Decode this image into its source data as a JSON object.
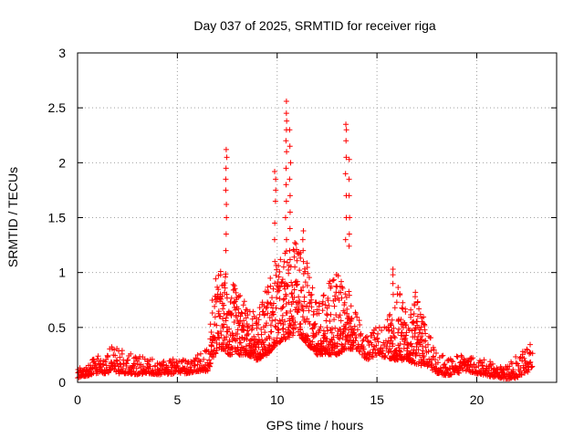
{
  "chart_data": {
    "type": "scatter",
    "title": "Day 037 of 2025, SRMTID for receiver riga",
    "xlabel": "GPS time / hours",
    "ylabel": "SRMTID / TECUs",
    "xlim": [
      0,
      24
    ],
    "ylim": [
      0,
      3
    ],
    "x_ticks": [
      0,
      5,
      10,
      15,
      20
    ],
    "x_tick_labels": [
      "0",
      "5",
      "10",
      "15",
      "20"
    ],
    "y_ticks": [
      0,
      0.5,
      1,
      1.5,
      2,
      2.5,
      3
    ],
    "y_tick_labels": [
      "0",
      "0.5",
      "1",
      "1.5",
      "2",
      "2.5",
      "3"
    ],
    "grid": true,
    "marker": "+",
    "series": [
      {
        "name": "SRMTID",
        "color": "#ff0000",
        "envelope": {
          "description": "points clustered between low and high bounds at each hour; spikes listed separately",
          "hours": [
            0,
            0.5,
            1,
            1.5,
            1.8,
            2,
            2.5,
            3,
            3.5,
            4,
            4.5,
            5,
            5.5,
            6,
            6.5,
            6.8,
            7,
            7.3,
            7.6,
            8,
            8.5,
            9,
            9.5,
            10,
            10.5,
            11,
            11.5,
            12,
            12.5,
            13,
            13.5,
            14,
            14.5,
            15,
            15.5,
            16,
            16.5,
            17,
            17.5,
            18,
            18.5,
            19,
            19.5,
            20,
            20.5,
            21,
            21.5,
            22,
            22.5,
            22.8
          ],
          "low": [
            0.04,
            0.06,
            0.08,
            0.08,
            0.12,
            0.08,
            0.08,
            0.07,
            0.08,
            0.07,
            0.07,
            0.08,
            0.08,
            0.1,
            0.1,
            0.2,
            0.3,
            0.3,
            0.25,
            0.25,
            0.25,
            0.2,
            0.25,
            0.35,
            0.4,
            0.45,
            0.35,
            0.25,
            0.25,
            0.25,
            0.3,
            0.3,
            0.2,
            0.25,
            0.22,
            0.2,
            0.2,
            0.15,
            0.15,
            0.08,
            0.06,
            0.08,
            0.1,
            0.08,
            0.06,
            0.04,
            0.03,
            0.04,
            0.08,
            0.15
          ],
          "high": [
            0.12,
            0.18,
            0.24,
            0.25,
            0.42,
            0.3,
            0.28,
            0.26,
            0.22,
            0.2,
            0.2,
            0.22,
            0.22,
            0.25,
            0.3,
            0.9,
            1.0,
            1.1,
            0.95,
            0.85,
            0.7,
            0.6,
            0.9,
            1.1,
            1.2,
            1.3,
            1.1,
            0.7,
            0.9,
            1.0,
            0.9,
            0.6,
            0.45,
            0.5,
            0.55,
            0.9,
            0.65,
            0.8,
            0.5,
            0.3,
            0.22,
            0.25,
            0.25,
            0.22,
            0.2,
            0.18,
            0.15,
            0.25,
            0.3,
            0.4
          ]
        },
        "spikes": [
          {
            "x": 7.45,
            "y": [
              1.2,
              1.35,
              1.5,
              1.62,
              1.75,
              1.85,
              1.95,
              2.05,
              2.12
            ]
          },
          {
            "x": 9.9,
            "y": [
              1.1,
              1.3,
              1.45,
              1.65,
              1.75,
              1.85,
              1.92
            ]
          },
          {
            "x": 10.45,
            "y": [
              1.3,
              1.5,
              1.65,
              1.8,
              1.95,
              2.1,
              2.2,
              2.3,
              2.38,
              2.45,
              2.56
            ]
          },
          {
            "x": 10.65,
            "y": [
              1.2,
              1.4,
              1.55,
              1.7,
              1.85,
              2.0,
              2.15,
              2.3
            ]
          },
          {
            "x": 11.3,
            "y": [
              1.1,
              1.2,
              1.3,
              1.38
            ]
          },
          {
            "x": 13.45,
            "y": [
              1.3,
              1.5,
              1.7,
              1.9,
              2.05,
              2.2,
              2.3,
              2.35
            ]
          },
          {
            "x": 13.6,
            "y": [
              1.24,
              1.35,
              1.5,
              1.7,
              1.85,
              2.03
            ]
          },
          {
            "x": 15.8,
            "y": [
              0.8,
              0.9,
              0.98,
              1.03
            ]
          },
          {
            "x": 16.9,
            "y": [
              0.7,
              0.78,
              0.82
            ]
          }
        ]
      }
    ]
  }
}
